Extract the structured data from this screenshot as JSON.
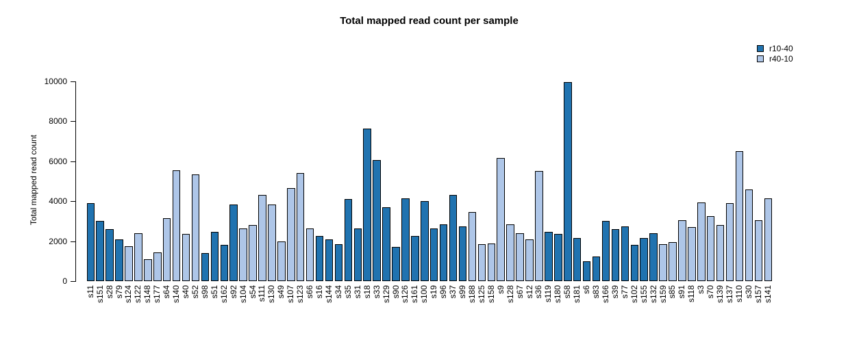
{
  "chart_data": {
    "type": "bar",
    "title": "Total mapped read count per sample",
    "xlabel": "",
    "ylabel": "Total mapped read count",
    "ylim": [
      0,
      10000
    ],
    "yticks": [
      0,
      2000,
      4000,
      6000,
      8000,
      10000
    ],
    "grid": false,
    "legend_position": "top-right",
    "bar_border_color": "#000000",
    "legend": [
      {
        "label": "r10-40",
        "color": "#2073b0"
      },
      {
        "label": "r40-10",
        "color": "#aec6e8"
      }
    ],
    "categories": [
      "s11",
      "s151",
      "s28",
      "s79",
      "s124",
      "s122",
      "s148",
      "s177",
      "s64",
      "s140",
      "s40",
      "s52",
      "s98",
      "s51",
      "s162",
      "s92",
      "s104",
      "s54",
      "s111",
      "s130",
      "s49",
      "s107",
      "s123",
      "s66",
      "s16",
      "s144",
      "s34",
      "s35",
      "s31",
      "s18",
      "s33",
      "s129",
      "s90",
      "s126",
      "s161",
      "s100",
      "s19",
      "s96",
      "s37",
      "s99",
      "s188",
      "s125",
      "s158",
      "s9",
      "s128",
      "s67",
      "s12",
      "s36",
      "s119",
      "s180",
      "s58",
      "s181",
      "s6",
      "s83",
      "s166",
      "s39",
      "s77",
      "s102",
      "s155",
      "s132",
      "s159",
      "s85",
      "s91",
      "s118",
      "s3",
      "s70",
      "s139",
      "s137",
      "s110",
      "s30",
      "s157",
      "s141"
    ],
    "values": [
      3900,
      3000,
      2600,
      2100,
      1750,
      2400,
      1100,
      1450,
      3150,
      5550,
      2350,
      5350,
      1400,
      2450,
      1800,
      3850,
      2650,
      2800,
      4300,
      3850,
      2000,
      4650,
      5400,
      2650,
      2250,
      2100,
      1850,
      4100,
      2650,
      7650,
      6050,
      3700,
      1700,
      4150,
      2250,
      4000,
      2650,
      2850,
      4300,
      2750,
      3450,
      1850,
      1900,
      6150,
      2850,
      2400,
      2100,
      5500,
      2450,
      2350,
      9950,
      2150,
      1000,
      1250,
      3000,
      2600,
      2750,
      1800,
      2150,
      2400,
      1850,
      1950,
      3050,
      2700,
      3950,
      3250,
      2800,
      3900,
      6500,
      4600,
      3050,
      4150
    ],
    "groups": [
      "r10-40",
      "r10-40",
      "r10-40",
      "r10-40",
      "r40-10",
      "r40-10",
      "r40-10",
      "r40-10",
      "r40-10",
      "r40-10",
      "r40-10",
      "r40-10",
      "r10-40",
      "r10-40",
      "r10-40",
      "r10-40",
      "r40-10",
      "r40-10",
      "r40-10",
      "r40-10",
      "r40-10",
      "r40-10",
      "r40-10",
      "r40-10",
      "r10-40",
      "r10-40",
      "r10-40",
      "r10-40",
      "r10-40",
      "r10-40",
      "r10-40",
      "r10-40",
      "r10-40",
      "r10-40",
      "r10-40",
      "r10-40",
      "r10-40",
      "r10-40",
      "r10-40",
      "r10-40",
      "r40-10",
      "r40-10",
      "r40-10",
      "r40-10",
      "r40-10",
      "r40-10",
      "r40-10",
      "r40-10",
      "r10-40",
      "r10-40",
      "r10-40",
      "r10-40",
      "r10-40",
      "r10-40",
      "r10-40",
      "r10-40",
      "r10-40",
      "r10-40",
      "r10-40",
      "r10-40",
      "r40-10",
      "r40-10",
      "r40-10",
      "r40-10",
      "r40-10",
      "r40-10",
      "r40-10",
      "r40-10",
      "r40-10",
      "r40-10",
      "r40-10",
      "r40-10"
    ]
  }
}
